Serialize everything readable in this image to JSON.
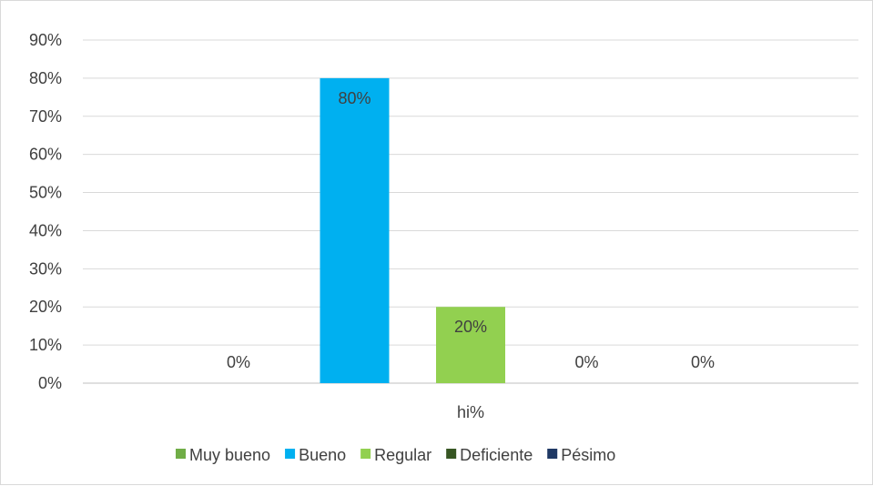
{
  "chart_data": {
    "type": "bar",
    "categories": [
      "hi%"
    ],
    "series": [
      {
        "name": "Muy bueno",
        "values": [
          0
        ],
        "label": "0%",
        "color": "#70ad47"
      },
      {
        "name": "Bueno",
        "values": [
          80
        ],
        "label": "80%",
        "color": "#00b0f0"
      },
      {
        "name": "Regular",
        "values": [
          20
        ],
        "label": "20%",
        "color": "#92d050"
      },
      {
        "name": "Deficiente",
        "values": [
          0
        ],
        "label": "0%",
        "color": "#375623"
      },
      {
        "name": "Pésimo",
        "values": [
          0
        ],
        "label": "0%",
        "color": "#1f3864"
      }
    ],
    "title": "",
    "xlabel": "",
    "ylabel": "",
    "ylim": [
      0,
      90
    ],
    "yticks": [
      "0%",
      "10%",
      "20%",
      "30%",
      "40%",
      "50%",
      "60%",
      "70%",
      "80%",
      "90%"
    ],
    "grid": true,
    "legend": "bottom"
  }
}
